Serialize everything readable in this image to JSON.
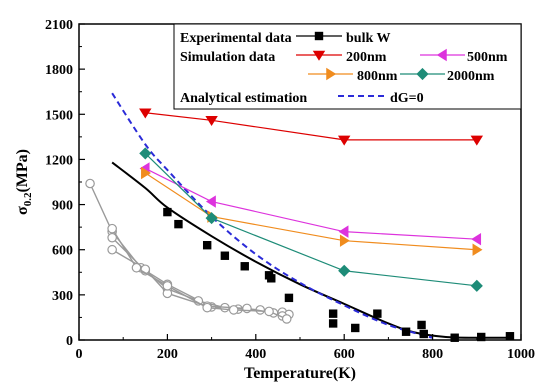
{
  "chart_data": {
    "type": "scatter",
    "xlabel": "Temperature(K)",
    "ylabel_main": "σ",
    "ylabel_sub": "0.2",
    "ylabel_unit": "(MPa)",
    "xlim": [
      0,
      1000
    ],
    "ylim": [
      0,
      2100
    ],
    "x_ticks": [
      0,
      200,
      400,
      600,
      800,
      1000
    ],
    "y_ticks": [
      0,
      300,
      600,
      900,
      1200,
      1500,
      1800,
      2100
    ],
    "grid": false,
    "legend_placement": "top-right",
    "legend_groups": [
      {
        "label": "Experimental data",
        "entries": [
          "bulk W"
        ]
      },
      {
        "label": "Simulation data",
        "entries": [
          "200nm",
          "500nm",
          "800nm",
          "2000nm"
        ]
      },
      {
        "label": "Analytical estimation",
        "entries": [
          "dG=0"
        ]
      }
    ],
    "series": [
      {
        "name": "bulk W",
        "color": "#000000",
        "marker": "square",
        "points": [
          [
            200,
            850
          ],
          [
            225,
            770
          ],
          [
            290,
            630
          ],
          [
            330,
            560
          ],
          [
            375,
            490
          ],
          [
            430,
            430
          ],
          [
            435,
            410
          ],
          [
            475,
            280
          ],
          [
            575,
            175
          ],
          [
            575,
            110
          ],
          [
            625,
            80
          ],
          [
            675,
            175
          ],
          [
            740,
            55
          ],
          [
            775,
            100
          ],
          [
            780,
            40
          ],
          [
            850,
            15
          ],
          [
            910,
            20
          ],
          [
            975,
            25
          ]
        ]
      },
      {
        "name": "200nm",
        "color": "#dd0000",
        "marker": "triangle-down",
        "points": [
          [
            150,
            1510
          ],
          [
            300,
            1460
          ],
          [
            600,
            1330
          ],
          [
            900,
            1330
          ]
        ]
      },
      {
        "name": "500nm",
        "color": "#dd33dd",
        "marker": "triangle-left",
        "points": [
          [
            150,
            1140
          ],
          [
            300,
            920
          ],
          [
            600,
            720
          ],
          [
            900,
            670
          ]
        ]
      },
      {
        "name": "800nm",
        "color": "#f08c1e",
        "marker": "triangle-right",
        "points": [
          [
            150,
            1110
          ],
          [
            300,
            820
          ],
          [
            600,
            660
          ],
          [
            900,
            600
          ]
        ]
      },
      {
        "name": "2000nm",
        "color": "#1e8c78",
        "marker": "diamond",
        "points": [
          [
            150,
            1240
          ],
          [
            300,
            810
          ],
          [
            600,
            460
          ],
          [
            900,
            360
          ]
        ]
      }
    ],
    "fit_curve": {
      "color": "#000000",
      "points": [
        [
          75,
          1180
        ],
        [
          150,
          1010
        ],
        [
          200,
          880
        ],
        [
          300,
          690
        ],
        [
          400,
          520
        ],
        [
          500,
          370
        ],
        [
          600,
          240
        ],
        [
          700,
          110
        ],
        [
          760,
          50
        ],
        [
          830,
          20
        ],
        [
          900,
          15
        ],
        [
          975,
          15
        ]
      ]
    },
    "analytical_curve": {
      "name": "dG=0",
      "color": "#2b2bd8",
      "points": [
        [
          75,
          1640
        ],
        [
          150,
          1300
        ],
        [
          200,
          1130
        ],
        [
          300,
          820
        ],
        [
          400,
          570
        ],
        [
          500,
          380
        ],
        [
          600,
          230
        ],
        [
          700,
          100
        ],
        [
          800,
          15
        ]
      ]
    },
    "grey_curves": {
      "color": "#9a9a9a",
      "curves": [
        [
          [
            25,
            1040
          ],
          [
            75,
            720
          ],
          [
            140,
            480
          ],
          [
            200,
            370
          ],
          [
            300,
            220
          ],
          [
            360,
            205
          ],
          [
            460,
            185
          ],
          [
            475,
            170
          ]
        ],
        [
          [
            75,
            680
          ],
          [
            150,
            460
          ],
          [
            200,
            340
          ],
          [
            270,
            260
          ],
          [
            330,
            215
          ],
          [
            410,
            200
          ],
          [
            460,
            160
          ]
        ],
        [
          [
            75,
            600
          ],
          [
            150,
            470
          ],
          [
            200,
            310
          ],
          [
            290,
            225
          ],
          [
            380,
            210
          ],
          [
            440,
            180
          ]
        ],
        [
          [
            75,
            740
          ],
          [
            130,
            480
          ],
          [
            200,
            360
          ],
          [
            290,
            215
          ],
          [
            350,
            200
          ],
          [
            430,
            190
          ],
          [
            470,
            140
          ]
        ]
      ]
    }
  }
}
